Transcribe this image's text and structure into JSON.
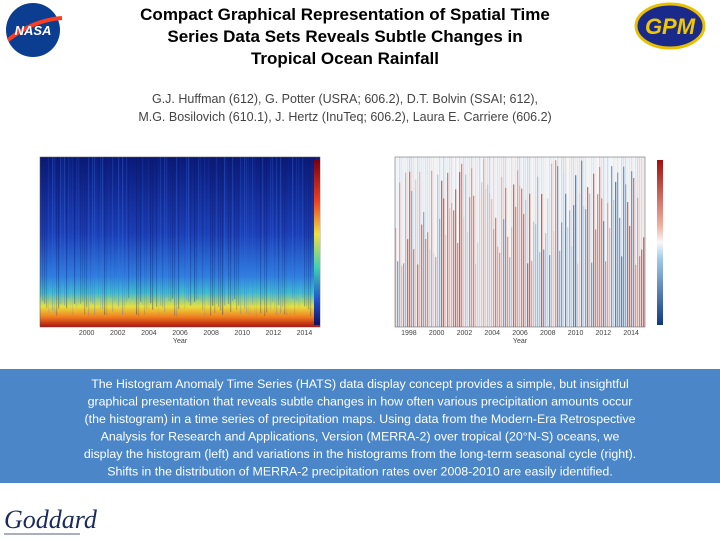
{
  "header": {
    "logo_left": "NASA",
    "logo_right": "GPM",
    "title_lines": [
      "Compact Graphical Representation of Spatial Time",
      "Series Data Sets Reveals Subtle Changes in",
      "Tropical Ocean Rainfall"
    ],
    "author_lines": [
      "G.J. Huffman (612), G. Potter (USRA; 606.2), D.T. Bolvin (SSAI; 612),",
      "M.G. Bosilovich (610.1), J. Hertz (InuTeq; 606.2),  Laura E. Carriere (606.2)"
    ]
  },
  "figures": [
    {
      "x_label": "Year",
      "x_ticks": [
        "2000",
        "2002",
        "2004",
        "2006",
        "2008",
        "2010",
        "2012",
        "2014"
      ]
    },
    {
      "x_label": "Year",
      "x_ticks": [
        "1998",
        "2000",
        "2002",
        "2004",
        "2006",
        "2008",
        "2010",
        "2012",
        "2014"
      ]
    }
  ],
  "description_lines": [
    "The Histogram Anomaly Time Series (HATS) data display concept provides a simple, but insightful",
    "graphical presentation that reveals subtle changes in how often various precipitation amounts occur",
    "(the histogram) in a time series of precipitation maps.  Using data from the Modern-Era Retrospective",
    "Analysis for Research and Applications, Version  (MERRA-2) over tropical (20°N-S) oceans, we",
    "display the histogram (left) and variations in the histograms from the long-term seasonal cycle (right).",
    "Shifts in the distribution of MERRA-2 precipitation rates over 2008-2010 are easily identified."
  ],
  "footer": {
    "logo": "Goddard"
  }
}
